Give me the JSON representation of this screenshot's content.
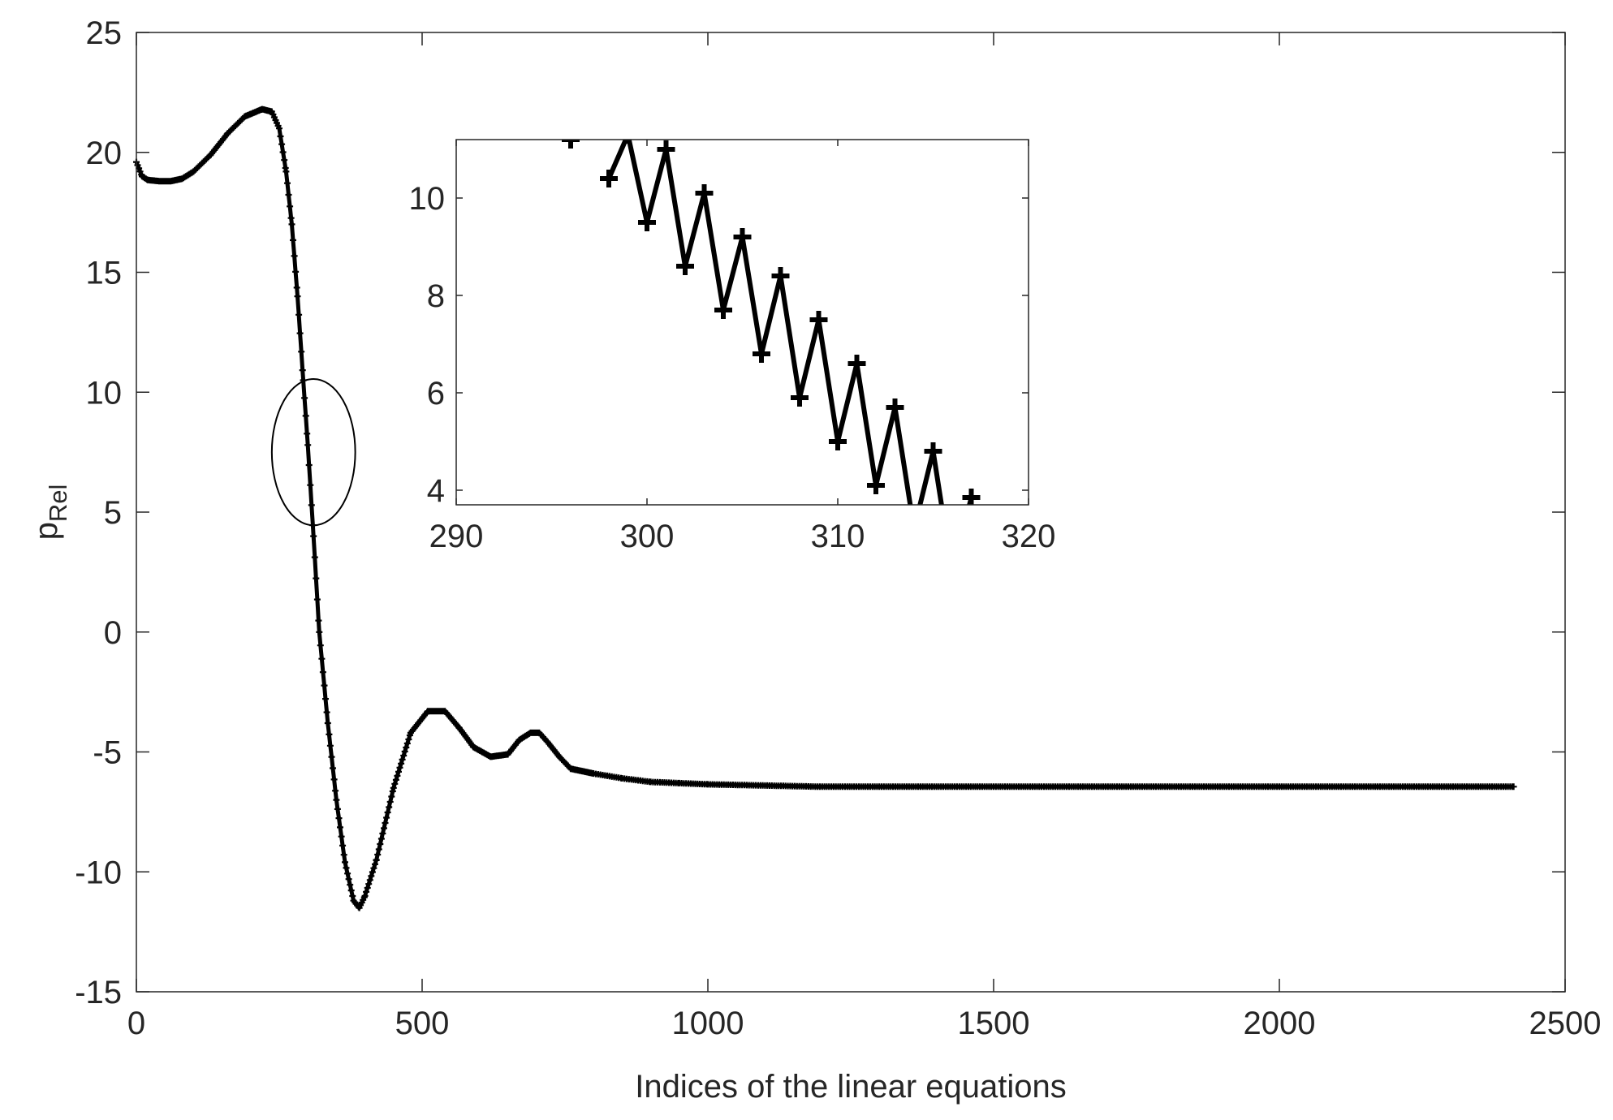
{
  "chart_data": [
    {
      "type": "line",
      "role": "main",
      "xlabel": "Indices of the linear equations",
      "ylabel_base": "p",
      "ylabel_sub": "Rel",
      "xlim": [
        0,
        2500
      ],
      "ylim": [
        -15,
        25
      ],
      "xticks": [
        0,
        500,
        1000,
        1500,
        2000,
        2500
      ],
      "yticks": [
        -15,
        -10,
        -5,
        0,
        5,
        10,
        15,
        20,
        25
      ],
      "xtick_labels": [
        "0",
        "500",
        "1000",
        "1500",
        "2000",
        "2500"
      ],
      "ytick_labels": [
        "-15",
        "-10",
        "-5",
        "0",
        "5",
        "10",
        "15",
        "20",
        "25"
      ],
      "grid": false,
      "marker": "+",
      "series": [
        {
          "x": [
            0,
            10,
            20,
            40,
            60,
            80,
            100,
            130,
            160,
            190,
            220,
            237,
            250,
            262,
            272,
            282,
            292,
            300,
            310,
            320,
            335,
            350,
            365,
            380,
            390,
            400,
            420,
            450,
            480,
            510,
            540,
            565,
            590,
            620,
            650,
            670,
            690,
            705,
            720,
            740,
            760,
            800,
            850,
            900,
            950,
            1000,
            1100,
            1200,
            1400,
            1600,
            1800,
            2000,
            2200,
            2410
          ],
          "y": [
            19.6,
            19.0,
            18.85,
            18.8,
            18.8,
            18.9,
            19.2,
            19.9,
            20.8,
            21.5,
            21.8,
            21.7,
            21.0,
            19.2,
            17.0,
            14.0,
            10.5,
            7.8,
            4.0,
            0.0,
            -3.8,
            -7.0,
            -9.6,
            -11.2,
            -11.5,
            -11.0,
            -9.5,
            -6.5,
            -4.2,
            -3.3,
            -3.3,
            -4.0,
            -4.8,
            -5.2,
            -5.1,
            -4.5,
            -4.2,
            -4.2,
            -4.6,
            -5.2,
            -5.7,
            -5.9,
            -6.1,
            -6.25,
            -6.3,
            -6.35,
            -6.4,
            -6.45,
            -6.45,
            -6.45,
            -6.45,
            -6.45,
            -6.45,
            -6.45
          ]
        }
      ],
      "annotation": {
        "type": "ellipse",
        "center": [
          310,
          7.5
        ],
        "x_radius": 73,
        "y_radius": 3.05
      }
    },
    {
      "type": "line",
      "role": "inset",
      "xlim": [
        290,
        320
      ],
      "ylim": [
        3.7,
        11.2
      ],
      "xticks": [
        290,
        300,
        310,
        320
      ],
      "yticks": [
        4,
        6,
        8,
        10
      ],
      "xtick_labels": [
        "290",
        "300",
        "310",
        "320"
      ],
      "ytick_labels": [
        "4",
        "6",
        "8",
        "10"
      ],
      "grid": false,
      "marker": "+",
      "series": [
        {
          "x": [
            296,
            298,
            299,
            300,
            301,
            302,
            303,
            304,
            305,
            306,
            307,
            308,
            309,
            310,
            311,
            312,
            313,
            314,
            315,
            316,
            317
          ],
          "y": [
            11.2,
            10.4,
            11.3,
            9.5,
            11.0,
            8.6,
            10.1,
            7.7,
            9.2,
            6.8,
            8.4,
            5.9,
            7.5,
            5.0,
            6.6,
            4.1,
            5.7,
            3.2,
            4.8,
            2.3,
            3.85
          ]
        }
      ]
    }
  ]
}
